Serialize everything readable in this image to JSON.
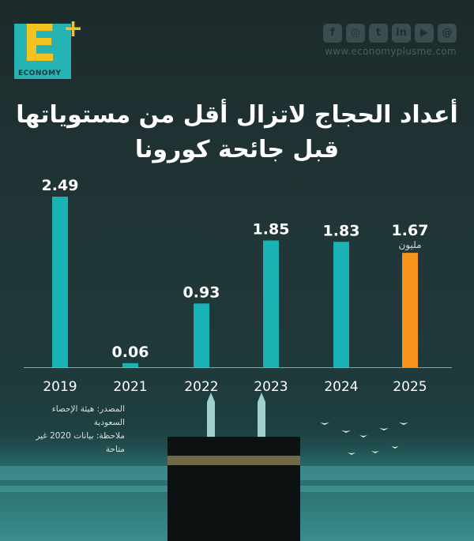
{
  "brand": {
    "logo_letter": "E",
    "logo_plus": "+",
    "logo_word": "ECONOMY",
    "website": "www.economyplusme.com",
    "social_icons": [
      "facebook-icon",
      "instagram-icon",
      "twitter-icon",
      "linkedin-icon",
      "youtube-icon",
      "threads-icon"
    ],
    "social_glyphs": [
      "f",
      "◎",
      "t",
      "in",
      "▶",
      "@"
    ]
  },
  "title_line1": "أعداد الحجاج لاتزال أقل من مستوياتها",
  "title_line2": "قبل جائحة كورونا",
  "source_line1": "المصدر: هيئة الإحصاء السعودية",
  "source_line2": "ملاحظة: بيانات 2020 غير متاحة",
  "colors": {
    "bar_default": "#19b3b5",
    "bar_highlight": "#f7941d",
    "logo_teal": "#26b3b3",
    "logo_yellow": "#f2c321"
  },
  "chart_data": {
    "type": "bar",
    "categories": [
      "2019",
      "2021",
      "2022",
      "2023",
      "2024",
      "2025"
    ],
    "values": [
      2.49,
      0.06,
      0.93,
      1.85,
      1.83,
      1.67
    ],
    "data_labels": [
      "2.49",
      "0.06",
      "0.93",
      "1.85",
      "1.83",
      "1.67"
    ],
    "unit_label": "مليون",
    "unit_label_category": "2025",
    "highlight_category": "2025",
    "title": "أعداد الحجاج لاتزال أقل من مستوياتها قبل جائحة كورونا",
    "xlabel": "",
    "ylabel": "",
    "ylim": [
      0,
      2.49
    ],
    "grid": false,
    "legend": "none"
  }
}
